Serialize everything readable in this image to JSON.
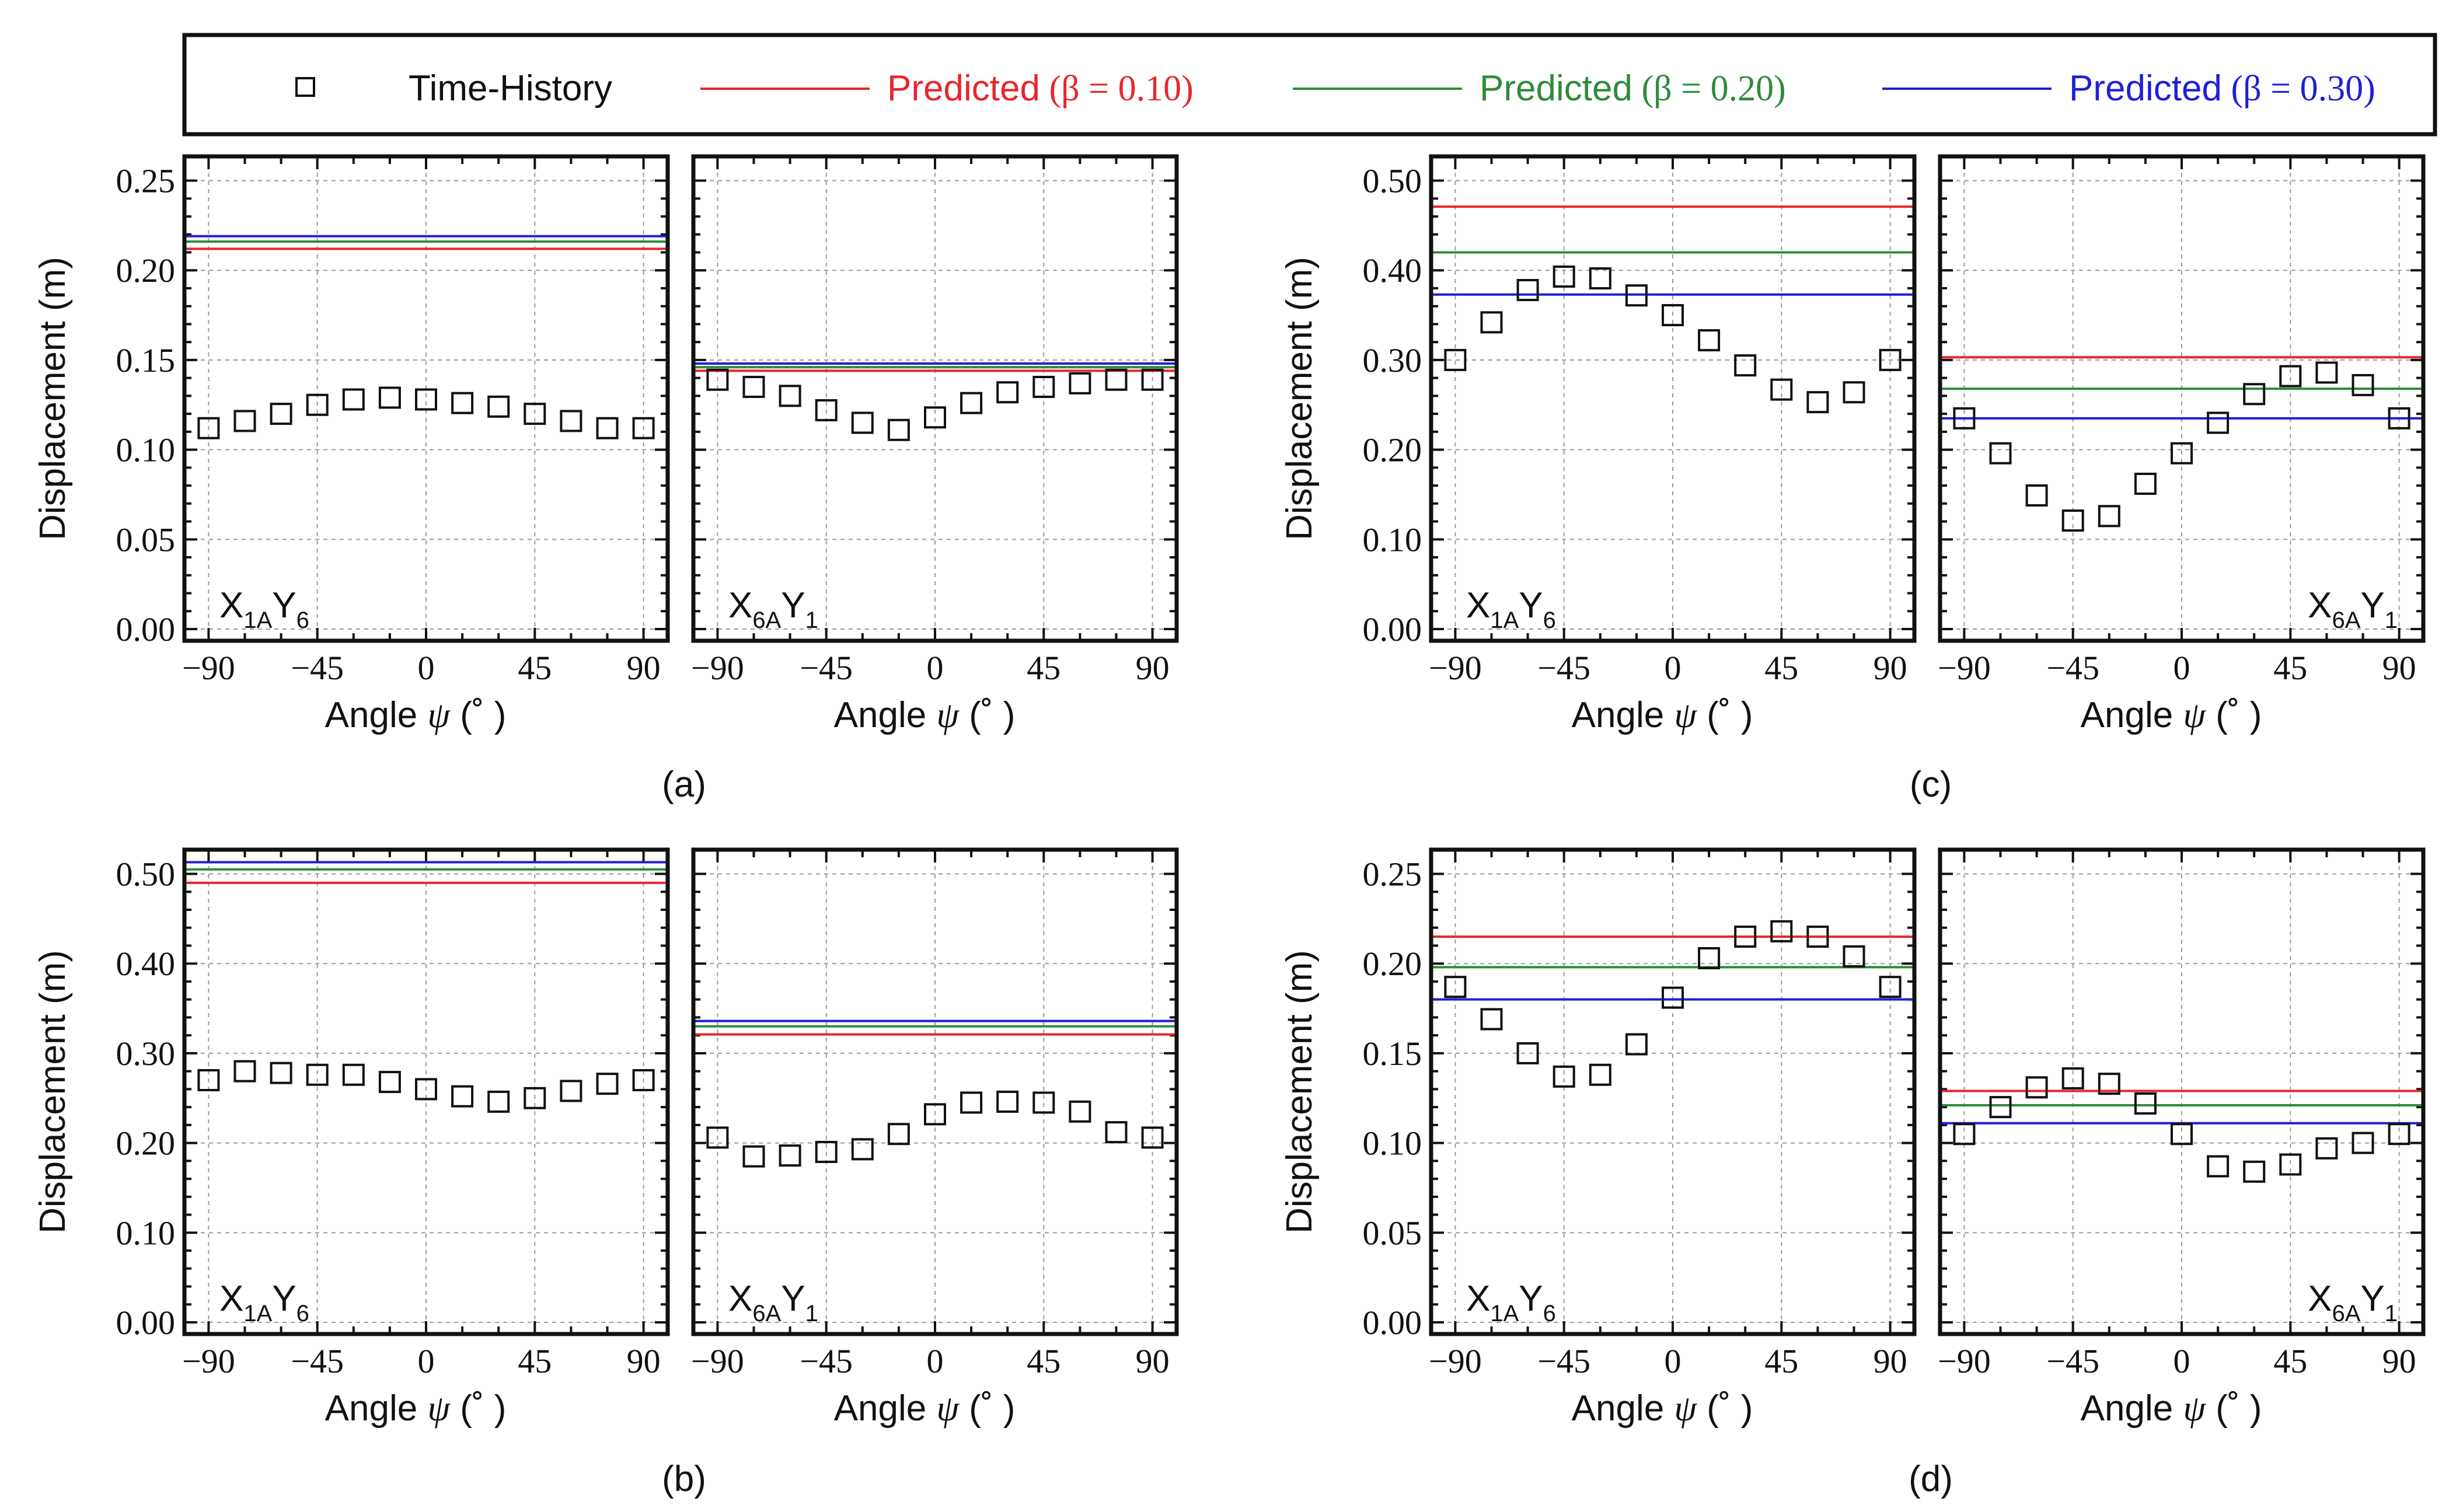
{
  "legend": {
    "items": [
      {
        "kind": "marker",
        "label": "Time-History",
        "color": "#111111"
      },
      {
        "kind": "line",
        "label": "Predicted",
        "beta": "(β = 0.10)",
        "color": "#e8262b"
      },
      {
        "kind": "line",
        "label": "Predicted",
        "beta": "(β = 0.20)",
        "color": "#2e8b3a"
      },
      {
        "kind": "line",
        "label": "Predicted",
        "beta": "(β = 0.30)",
        "color": "#1f1fd8"
      }
    ]
  },
  "xlabel_text": "Angle ",
  "xlabel_symbol": "ψ",
  "xlabel_unit": "(˚  )",
  "ylabel": "Displacement (m)",
  "xticks": [
    -90,
    -45,
    0,
    45,
    90
  ],
  "xtick_labels": [
    "−90",
    "−45",
    "0",
    "45",
    "90"
  ],
  "angles": [
    -90,
    -75,
    -60,
    -45,
    -30,
    -15,
    0,
    15,
    30,
    45,
    60,
    75,
    90
  ],
  "panel_groups": [
    {
      "label": "(a)",
      "yticks": [
        "0.00",
        "0.05",
        "0.10",
        "0.15",
        "0.20",
        "0.25"
      ]
    },
    {
      "label": "(b)",
      "yticks": [
        "0.00",
        "0.10",
        "0.20",
        "0.30",
        "0.40",
        "0.50"
      ]
    },
    {
      "label": "(c)",
      "yticks": [
        "0.00",
        "0.10",
        "0.20",
        "0.30",
        "0.40",
        "0.50"
      ]
    },
    {
      "label": "(d)",
      "yticks": [
        "0.00",
        "0.05",
        "0.10",
        "0.15",
        "0.20",
        "0.25"
      ]
    }
  ],
  "chart_data": [
    {
      "type": "scatter",
      "group": "(a)",
      "panel": "X1AY6",
      "label": {
        "a": "X",
        "a_sub": "1A",
        "b": "Y",
        "b_sub": "6"
      },
      "label_pos": "bottom-left",
      "ylim": [
        0,
        0.25
      ],
      "ytick_step": 0.05,
      "x": [
        -90,
        -75,
        -60,
        -45,
        -30,
        -15,
        0,
        15,
        30,
        45,
        60,
        75,
        90
      ],
      "time_history": [
        0.112,
        0.116,
        0.12,
        0.125,
        0.128,
        0.129,
        0.128,
        0.126,
        0.124,
        0.12,
        0.116,
        0.112,
        0.112
      ],
      "predicted": {
        "beta_0.10": 0.212,
        "beta_0.20": 0.216,
        "beta_0.30": 0.219
      }
    },
    {
      "type": "scatter",
      "group": "(a)",
      "panel": "X6AY1",
      "label": {
        "a": "X",
        "a_sub": "6A",
        "b": "Y",
        "b_sub": "1"
      },
      "label_pos": "bottom-left",
      "ylim": [
        0,
        0.25
      ],
      "ytick_step": 0.05,
      "x": [
        -90,
        -75,
        -60,
        -45,
        -30,
        -15,
        0,
        15,
        30,
        45,
        60,
        75,
        90
      ],
      "time_history": [
        0.139,
        0.135,
        0.13,
        0.122,
        0.115,
        0.111,
        0.118,
        0.126,
        0.132,
        0.135,
        0.137,
        0.139,
        0.139
      ],
      "predicted": {
        "beta_0.10": 0.144,
        "beta_0.20": 0.146,
        "beta_0.30": 0.148
      }
    },
    {
      "type": "scatter",
      "group": "(b)",
      "panel": "X1AY6",
      "label": {
        "a": "X",
        "a_sub": "1A",
        "b": "Y",
        "b_sub": "6"
      },
      "label_pos": "bottom-left",
      "ylim": [
        0,
        0.5
      ],
      "ytick_step": 0.1,
      "x": [
        -90,
        -75,
        -60,
        -45,
        -30,
        -15,
        0,
        15,
        30,
        45,
        60,
        75,
        90
      ],
      "time_history": [
        0.27,
        0.28,
        0.278,
        0.276,
        0.276,
        0.268,
        0.26,
        0.252,
        0.246,
        0.25,
        0.258,
        0.266,
        0.27
      ],
      "predicted": {
        "beta_0.10": 0.49,
        "beta_0.20": 0.505,
        "beta_0.30": 0.513
      }
    },
    {
      "type": "scatter",
      "group": "(b)",
      "panel": "X6AY1",
      "label": {
        "a": "X",
        "a_sub": "6A",
        "b": "Y",
        "b_sub": "1"
      },
      "label_pos": "bottom-left",
      "ylim": [
        0,
        0.5
      ],
      "ytick_step": 0.1,
      "x": [
        -90,
        -75,
        -60,
        -45,
        -30,
        -15,
        0,
        15,
        30,
        45,
        60,
        75,
        90
      ],
      "time_history": [
        0.206,
        0.185,
        0.186,
        0.19,
        0.193,
        0.21,
        0.232,
        0.245,
        0.246,
        0.245,
        0.235,
        0.212,
        0.206
      ],
      "predicted": {
        "beta_0.10": 0.321,
        "beta_0.20": 0.33,
        "beta_0.30": 0.336
      }
    },
    {
      "type": "scatter",
      "group": "(c)",
      "panel": "X1AY6",
      "label": {
        "a": "X",
        "a_sub": "1A",
        "b": "Y",
        "b_sub": "6"
      },
      "label_pos": "bottom-left",
      "ylim": [
        0,
        0.5
      ],
      "ytick_step": 0.1,
      "x": [
        -90,
        -75,
        -60,
        -45,
        -30,
        -15,
        0,
        15,
        30,
        45,
        60,
        75,
        90
      ],
      "time_history": [
        0.3,
        0.342,
        0.378,
        0.393,
        0.391,
        0.372,
        0.35,
        0.322,
        0.294,
        0.267,
        0.253,
        0.264,
        0.3
      ],
      "predicted": {
        "beta_0.10": 0.471,
        "beta_0.20": 0.42,
        "beta_0.30": 0.373
      }
    },
    {
      "type": "scatter",
      "group": "(c)",
      "panel": "X6AY1",
      "label": {
        "a": "X",
        "a_sub": "6A",
        "b": "Y",
        "b_sub": "1"
      },
      "label_pos": "bottom-right",
      "ylim": [
        0,
        0.5
      ],
      "ytick_step": 0.1,
      "x": [
        -90,
        -75,
        -60,
        -45,
        -30,
        -15,
        0,
        15,
        30,
        45,
        60,
        75,
        90
      ],
      "time_history": [
        0.235,
        0.196,
        0.149,
        0.121,
        0.126,
        0.162,
        0.196,
        0.23,
        0.262,
        0.282,
        0.286,
        0.272,
        0.235
      ],
      "predicted": {
        "beta_0.10": 0.303,
        "beta_0.20": 0.268,
        "beta_0.30": 0.235
      }
    },
    {
      "type": "scatter",
      "group": "(d)",
      "panel": "X1AY6",
      "label": {
        "a": "X",
        "a_sub": "1A",
        "b": "Y",
        "b_sub": "6"
      },
      "label_pos": "bottom-left",
      "ylim": [
        0,
        0.25
      ],
      "ytick_step": 0.05,
      "x": [
        -90,
        -75,
        -60,
        -45,
        -30,
        -15,
        0,
        15,
        30,
        45,
        60,
        75,
        90
      ],
      "time_history": [
        0.187,
        0.169,
        0.15,
        0.137,
        0.138,
        0.155,
        0.181,
        0.203,
        0.215,
        0.218,
        0.215,
        0.204,
        0.187
      ],
      "predicted": {
        "beta_0.10": 0.215,
        "beta_0.20": 0.198,
        "beta_0.30": 0.18
      }
    },
    {
      "type": "scatter",
      "group": "(d)",
      "panel": "X6AY1",
      "label": {
        "a": "X",
        "a_sub": "6A",
        "b": "Y",
        "b_sub": "1"
      },
      "label_pos": "bottom-right",
      "ylim": [
        0,
        0.25
      ],
      "ytick_step": 0.05,
      "x": [
        -90,
        -75,
        -60,
        -45,
        -30,
        -15,
        0,
        15,
        30,
        45,
        60,
        75,
        90
      ],
      "time_history": [
        0.105,
        0.12,
        0.131,
        0.136,
        0.133,
        0.122,
        0.105,
        0.087,
        0.084,
        0.088,
        0.097,
        0.1,
        0.105
      ],
      "predicted": {
        "beta_0.10": 0.129,
        "beta_0.20": 0.121,
        "beta_0.30": 0.111
      }
    }
  ]
}
